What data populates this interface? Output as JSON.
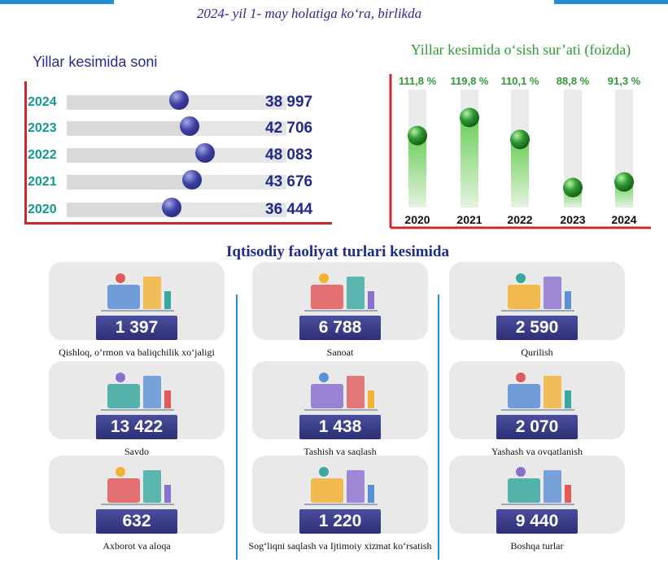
{
  "header": {
    "subtitle": "2024- yil 1- may holatiga ko‘ra, birlikda"
  },
  "colors": {
    "accent": "#1f8fd6",
    "navy": "#1f2a8c",
    "teal": "#11988f",
    "green": "#2e9b33",
    "axis_red": "#c92a2a"
  },
  "chart_data": [
    {
      "type": "bar",
      "orientation": "horizontal",
      "title": "Yillar kesimida soni",
      "categories": [
        "2024",
        "2023",
        "2022",
        "2021",
        "2020"
      ],
      "values": [
        38997,
        42706,
        48083,
        43676,
        36444
      ],
      "value_labels": [
        "38 997",
        "42 706",
        "48 083",
        "43 676",
        "36 444"
      ]
    },
    {
      "type": "bar",
      "title": "Yillar kesimida o‘sish sur’ati (foizda)",
      "categories": [
        "2020",
        "2021",
        "2022",
        "2023",
        "2024"
      ],
      "values": [
        111.8,
        119.8,
        110.1,
        88.8,
        91.3
      ],
      "value_labels": [
        "111,8 %",
        "119,8 %",
        "110,1 %",
        "88,8 %",
        "91,3 %"
      ]
    }
  ],
  "section": {
    "title": "Iqtisodiy faoliyat turlari kesimida"
  },
  "categories": [
    {
      "value": "1 397",
      "label": "Qishloq, o‘rmon va baliqchilik xo‘jaligi",
      "icon": "agriculture-icon"
    },
    {
      "value": "6 788",
      "label": "Sanoat",
      "icon": "industry-icon"
    },
    {
      "value": "2 590",
      "label": "Qurilish",
      "icon": "construction-icon"
    },
    {
      "value": "13 422",
      "label": "Savdo",
      "icon": "trade-icon"
    },
    {
      "value": "1 438",
      "label": "Tashish va saqlash",
      "icon": "transport-icon"
    },
    {
      "value": "2 070",
      "label": "Yashash va ovqatlanish",
      "icon": "food-service-icon"
    },
    {
      "value": "632",
      "label": "Axborot va aloqa",
      "icon": "it-icon"
    },
    {
      "value": "1 220",
      "label": "Sog‘liqni saqlash va Ijtimoiy xizmat ko‘rsatish",
      "icon": "health-icon"
    },
    {
      "value": "9 440",
      "label": "Boshqa turlar",
      "icon": "other-icon"
    }
  ]
}
